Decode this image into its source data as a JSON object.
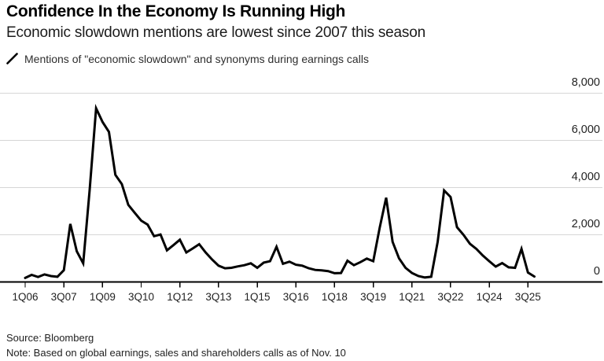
{
  "header": {
    "title": "Confidence In the Economy Is Running High",
    "subtitle": "Economic slowdown mentions are lowest since 2007 this season"
  },
  "legend": {
    "icon": "line-swatch",
    "label": "Mentions of \"economic slowdown\" and synonyms during earnings calls"
  },
  "footer": {
    "source": "Source: Bloomberg",
    "note": "Note: Based on global earnings, sales and shareholders calls as of Nov. 10"
  },
  "colors": {
    "line": "#000000",
    "grid": "#d6d6d6",
    "axis": "#000000",
    "text": "#222222",
    "background": "#ffffff"
  },
  "chart_data": {
    "type": "line",
    "title": "Confidence In the Economy Is Running High",
    "subtitle": "Economic slowdown mentions are lowest since 2007 this season",
    "series_name": "Mentions of \"economic slowdown\" and synonyms during earnings calls",
    "grid": "horizontal",
    "legend_position": "top-left",
    "y_axis_side": "right",
    "ylim": [
      0,
      8000
    ],
    "y_ticks": [
      0,
      2000,
      4000,
      6000,
      8000
    ],
    "y_tick_labels": [
      "0",
      "2,000",
      "4,000",
      "6,000",
      "8,000"
    ],
    "x_tick_labels": [
      "1Q06",
      "3Q07",
      "1Q09",
      "3Q10",
      "1Q12",
      "3Q13",
      "1Q15",
      "3Q16",
      "1Q18",
      "3Q19",
      "1Q21",
      "3Q22",
      "1Q24",
      "3Q25"
    ],
    "x_tick_indices": [
      0,
      6,
      12,
      18,
      24,
      30,
      36,
      42,
      48,
      54,
      60,
      66,
      72,
      78
    ],
    "categories": [
      "1Q06",
      "2Q06",
      "3Q06",
      "4Q06",
      "1Q07",
      "2Q07",
      "3Q07",
      "4Q07",
      "1Q08",
      "2Q08",
      "3Q08",
      "4Q08",
      "1Q09",
      "2Q09",
      "3Q09",
      "4Q09",
      "1Q10",
      "2Q10",
      "3Q10",
      "4Q10",
      "1Q11",
      "2Q11",
      "3Q11",
      "4Q11",
      "1Q12",
      "2Q12",
      "3Q12",
      "4Q12",
      "1Q13",
      "2Q13",
      "3Q13",
      "4Q13",
      "1Q14",
      "2Q14",
      "3Q14",
      "4Q14",
      "1Q15",
      "2Q15",
      "3Q15",
      "4Q15",
      "1Q16",
      "2Q16",
      "3Q16",
      "4Q16",
      "1Q17",
      "2Q17",
      "3Q17",
      "4Q17",
      "1Q18",
      "2Q18",
      "3Q18",
      "4Q18",
      "1Q19",
      "2Q19",
      "3Q19",
      "4Q19",
      "1Q20",
      "2Q20",
      "3Q20",
      "4Q20",
      "1Q21",
      "2Q21",
      "3Q21",
      "4Q21",
      "1Q22",
      "2Q22",
      "3Q22",
      "4Q22",
      "1Q23",
      "2Q23",
      "3Q23",
      "4Q23",
      "1Q24",
      "2Q24",
      "3Q24",
      "4Q24",
      "1Q25",
      "2Q25",
      "3Q25",
      "4Q25"
    ],
    "values": [
      170,
      300,
      210,
      320,
      250,
      220,
      500,
      2460,
      1300,
      790,
      3900,
      7360,
      6780,
      6360,
      4540,
      4150,
      3270,
      2930,
      2600,
      2430,
      1940,
      2010,
      1340,
      1560,
      1790,
      1250,
      1420,
      1600,
      1250,
      950,
      690,
      580,
      600,
      660,
      710,
      790,
      600,
      820,
      880,
      1490,
      770,
      860,
      730,
      690,
      580,
      510,
      490,
      460,
      370,
      380,
      900,
      710,
      840,
      990,
      880,
      2300,
      3570,
      1700,
      1000,
      600,
      380,
      250,
      190,
      220,
      1700,
      3880,
      3600,
      2320,
      2000,
      1620,
      1400,
      1120,
      880,
      650,
      800,
      620,
      600,
      1400,
      400,
      230
    ]
  }
}
